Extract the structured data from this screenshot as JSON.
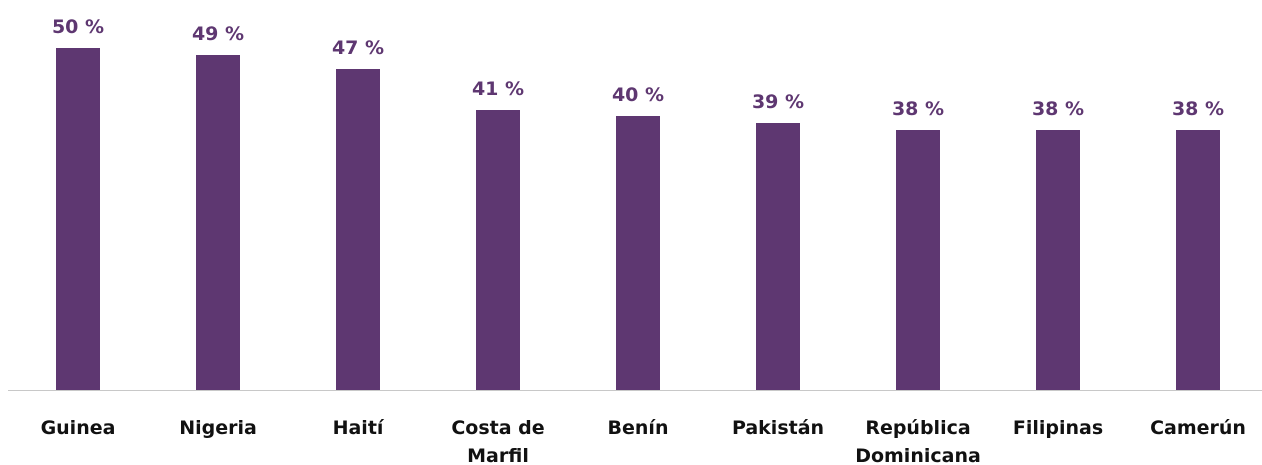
{
  "chart_data": {
    "type": "bar",
    "categories": [
      "Guinea",
      "Nigeria",
      "Haití",
      "Costa de Marfil",
      "Benín",
      "Pakistán",
      "República Dominicana",
      "Filipinas",
      "Camerún"
    ],
    "values": [
      50,
      49,
      47,
      41,
      40,
      39,
      38,
      38,
      38
    ],
    "value_labels": [
      "50 %",
      "49 %",
      "47 %",
      "41 %",
      "40 %",
      "39 %",
      "38 %",
      "38 %",
      "38 %"
    ],
    "color": "#5e3771"
  }
}
